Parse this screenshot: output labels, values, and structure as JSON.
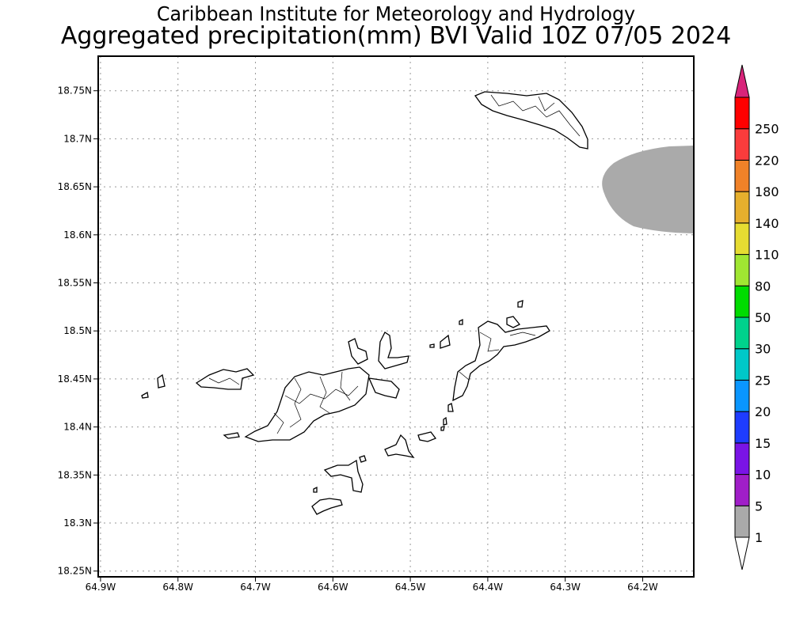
{
  "title": {
    "line1": "Caribbean Institute for Meteorology and Hydrology",
    "line2": "Aggregated precipitation(mm) BVI Valid 10Z 07/05 2024"
  },
  "map": {
    "lon_ticks": [
      "64.9W",
      "64.8W",
      "64.7W",
      "64.6W",
      "64.5W",
      "64.4W",
      "64.3W",
      "64.2W"
    ],
    "lat_ticks": [
      "18.75N",
      "18.7N",
      "18.65N",
      "18.6N",
      "18.55N",
      "18.5N",
      "18.45N",
      "18.4N",
      "18.35N",
      "18.3N",
      "18.25N"
    ],
    "lon_values": [
      -64.9,
      -64.8,
      -64.7,
      -64.6,
      -64.5,
      -64.4,
      -64.3,
      -64.2
    ],
    "lat_values": [
      18.75,
      18.7,
      18.65,
      18.6,
      18.55,
      18.5,
      18.45,
      18.4,
      18.35,
      18.3,
      18.25
    ],
    "lon_range": [
      -64.903,
      -64.134
    ],
    "lat_range": [
      18.244,
      18.786
    ],
    "gridlines": true,
    "precip_area": {
      "category": "1-5 mm",
      "color": "#aaaaaa",
      "location": "east edge near 18.6N-18.7N"
    }
  },
  "colorbar": {
    "labels": [
      "1",
      "5",
      "10",
      "15",
      "20",
      "25",
      "30",
      "50",
      "80",
      "110",
      "140",
      "180",
      "220",
      "250"
    ],
    "colors": [
      "#aaaaaa",
      "#a01ec8",
      "#7a14e6",
      "#1e3cff",
      "#0a96ff",
      "#00c8c8",
      "#00d28c",
      "#00dc00",
      "#a0e632",
      "#e6dc32",
      "#e6af2d",
      "#f08228",
      "#fa3c3c",
      "#ff0000"
    ],
    "below_color": "#ffffff",
    "above_color": "#d8247a"
  }
}
